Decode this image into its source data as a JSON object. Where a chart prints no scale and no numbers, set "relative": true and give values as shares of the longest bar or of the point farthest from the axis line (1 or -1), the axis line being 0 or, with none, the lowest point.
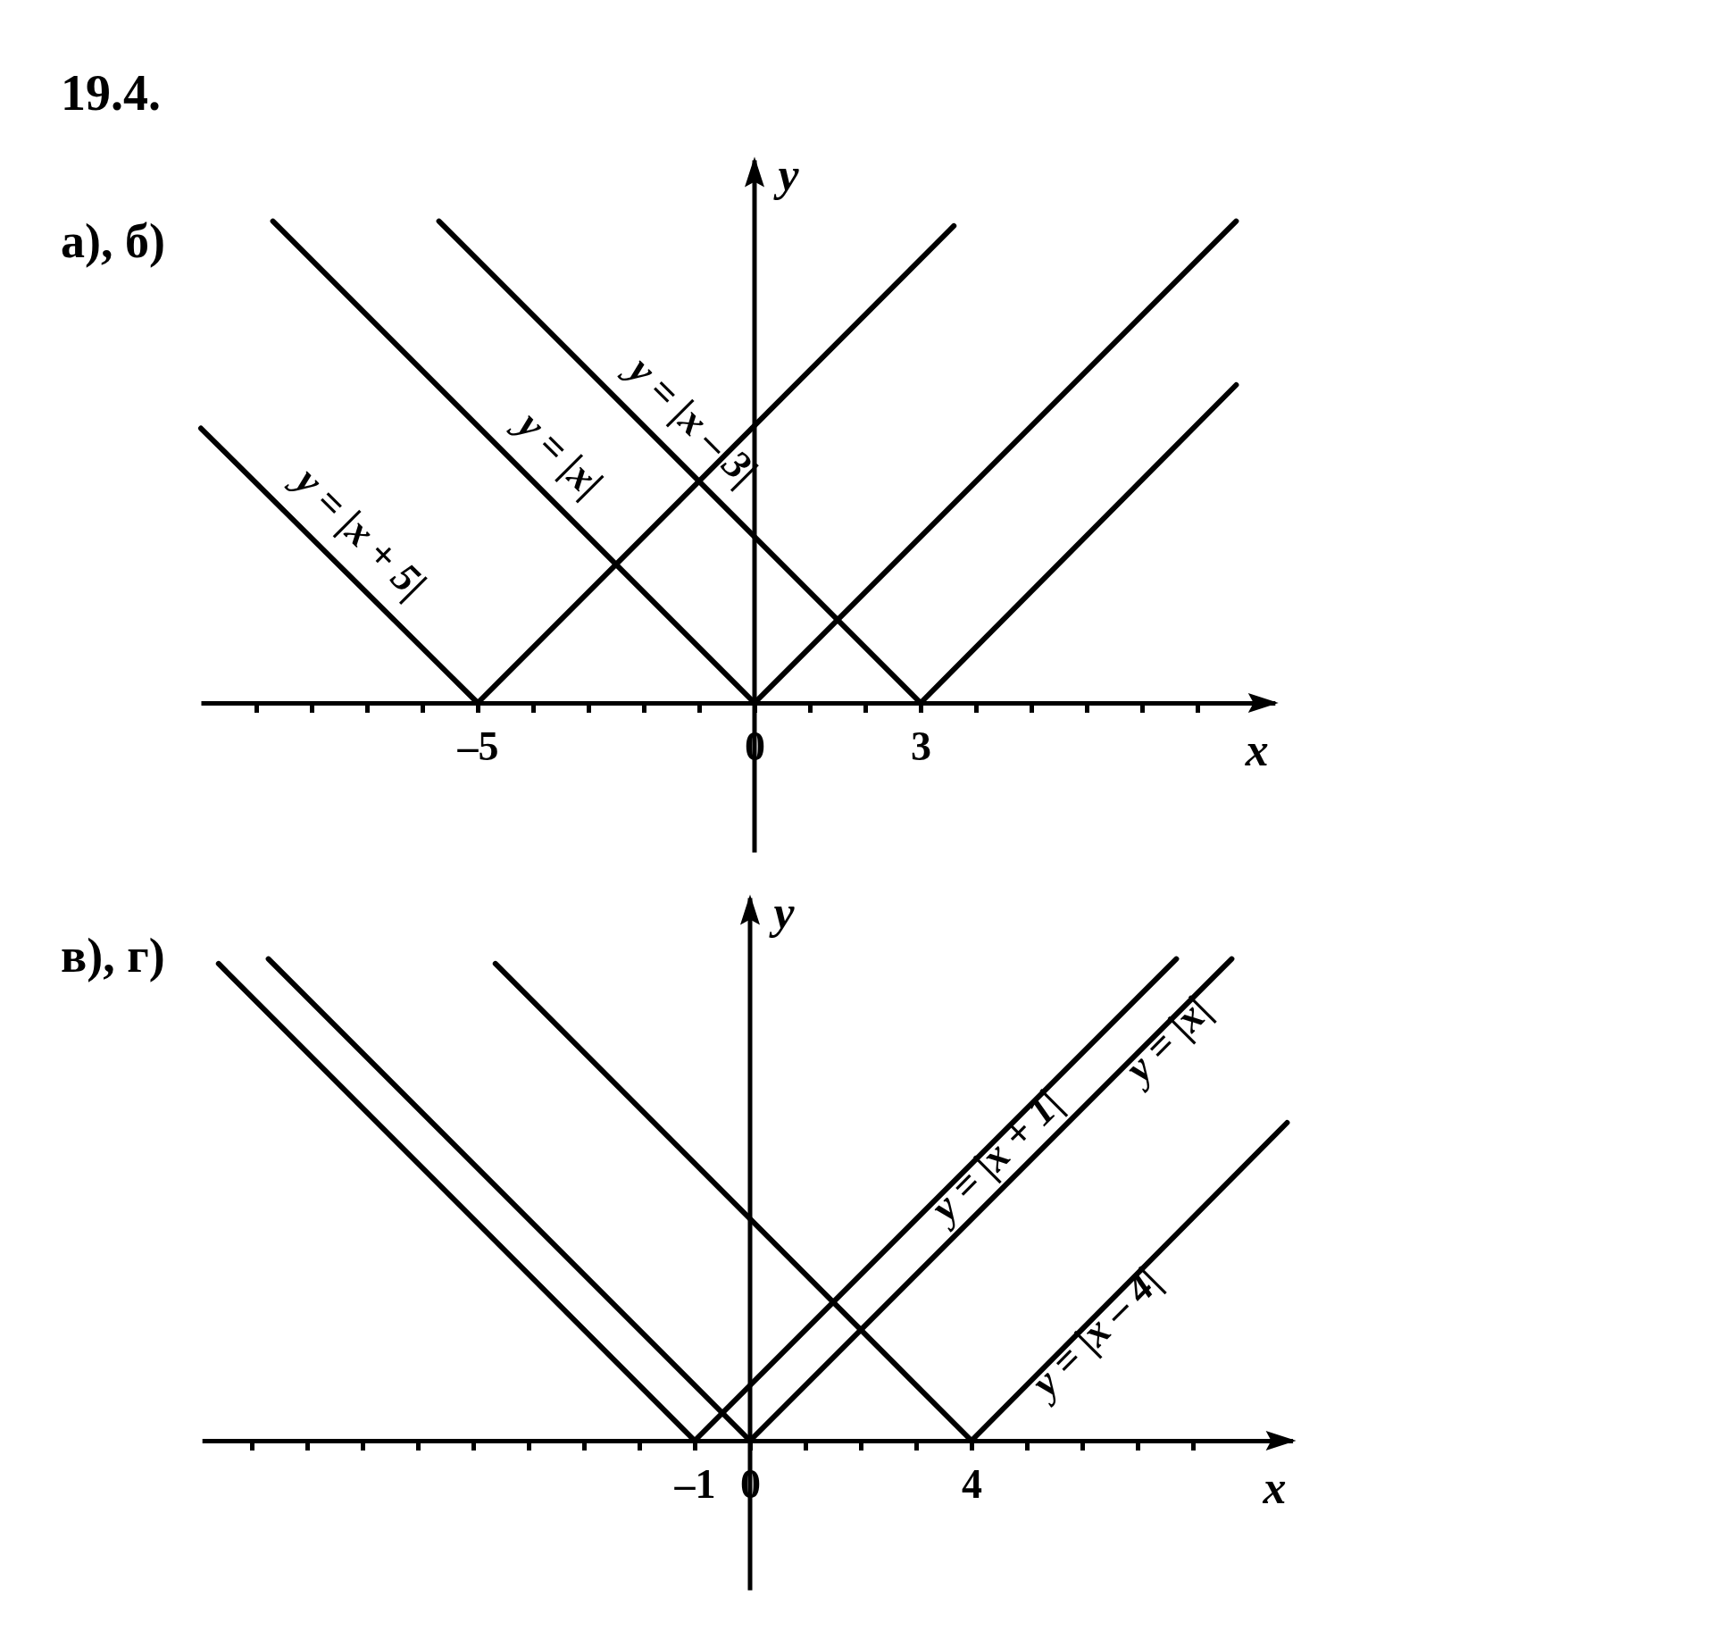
{
  "chart_data": [
    {
      "type": "line",
      "title": "19.4.",
      "subtitle": "а), б)",
      "xlabel": "x",
      "ylabel": "y",
      "xlim": [
        -10,
        9.4
      ],
      "relative": true,
      "xticks": [
        {
          "value": -9,
          "label": null
        },
        {
          "value": -8,
          "label": null
        },
        {
          "value": -7,
          "label": null
        },
        {
          "value": -6,
          "label": null
        },
        {
          "value": -5,
          "label": "–5"
        },
        {
          "value": -4,
          "label": null
        },
        {
          "value": -3,
          "label": null
        },
        {
          "value": -2,
          "label": null
        },
        {
          "value": -1,
          "label": null
        },
        {
          "value": 0,
          "label": "0"
        },
        {
          "value": 1,
          "label": null
        },
        {
          "value": 2,
          "label": null
        },
        {
          "value": 3,
          "label": "3"
        },
        {
          "value": 4,
          "label": null
        },
        {
          "value": 5,
          "label": null
        },
        {
          "value": 6,
          "label": null
        },
        {
          "value": 7,
          "label": null
        },
        {
          "value": 8,
          "label": null
        }
      ],
      "line_style": "solid",
      "series": [
        {
          "name": "y = |x + 5|",
          "color": "#000000",
          "x": [
            -10,
            -5,
            3.6
          ],
          "values": [
            0.57,
            0,
            0.99
          ]
        },
        {
          "name": "y = |x|",
          "color": "#000000",
          "x": [
            -8.7,
            0,
            8.7
          ],
          "values": [
            1,
            0,
            1
          ]
        },
        {
          "name": "y = |x – 3|",
          "color": "#000000",
          "x": [
            -5.7,
            3,
            8.7
          ],
          "values": [
            1,
            0,
            0.66
          ]
        }
      ]
    },
    {
      "type": "line",
      "subtitle": "в), г)",
      "xlabel": "x",
      "ylabel": "y",
      "xlim": [
        -9.9,
        9.8
      ],
      "relative": true,
      "xticks": [
        {
          "value": -9,
          "label": null
        },
        {
          "value": -8,
          "label": null
        },
        {
          "value": -7,
          "label": null
        },
        {
          "value": -6,
          "label": null
        },
        {
          "value": -5,
          "label": null
        },
        {
          "value": -4,
          "label": null
        },
        {
          "value": -3,
          "label": null
        },
        {
          "value": -2,
          "label": null
        },
        {
          "value": -1,
          "label": "–1"
        },
        {
          "value": 0,
          "label": "0"
        },
        {
          "value": 1,
          "label": null
        },
        {
          "value": 2,
          "label": null
        },
        {
          "value": 3,
          "label": null
        },
        {
          "value": 4,
          "label": "4"
        },
        {
          "value": 5,
          "label": null
        },
        {
          "value": 6,
          "label": null
        },
        {
          "value": 7,
          "label": null
        },
        {
          "value": 8,
          "label": null
        }
      ],
      "line_style": "solid",
      "series": [
        {
          "name": "y = |x + 1|",
          "color": "#000000",
          "x": [
            -9.6,
            -1,
            7.7
          ],
          "values": [
            0.99,
            0,
            1
          ]
        },
        {
          "name": "y = |x|",
          "color": "#000000",
          "x": [
            -8.7,
            0,
            8.7
          ],
          "values": [
            1,
            0,
            1
          ]
        },
        {
          "name": "y = |x – 4|",
          "color": "#000000",
          "x": [
            -4.6,
            4,
            9.7
          ],
          "values": [
            0.99,
            0,
            0.66
          ]
        }
      ]
    }
  ]
}
